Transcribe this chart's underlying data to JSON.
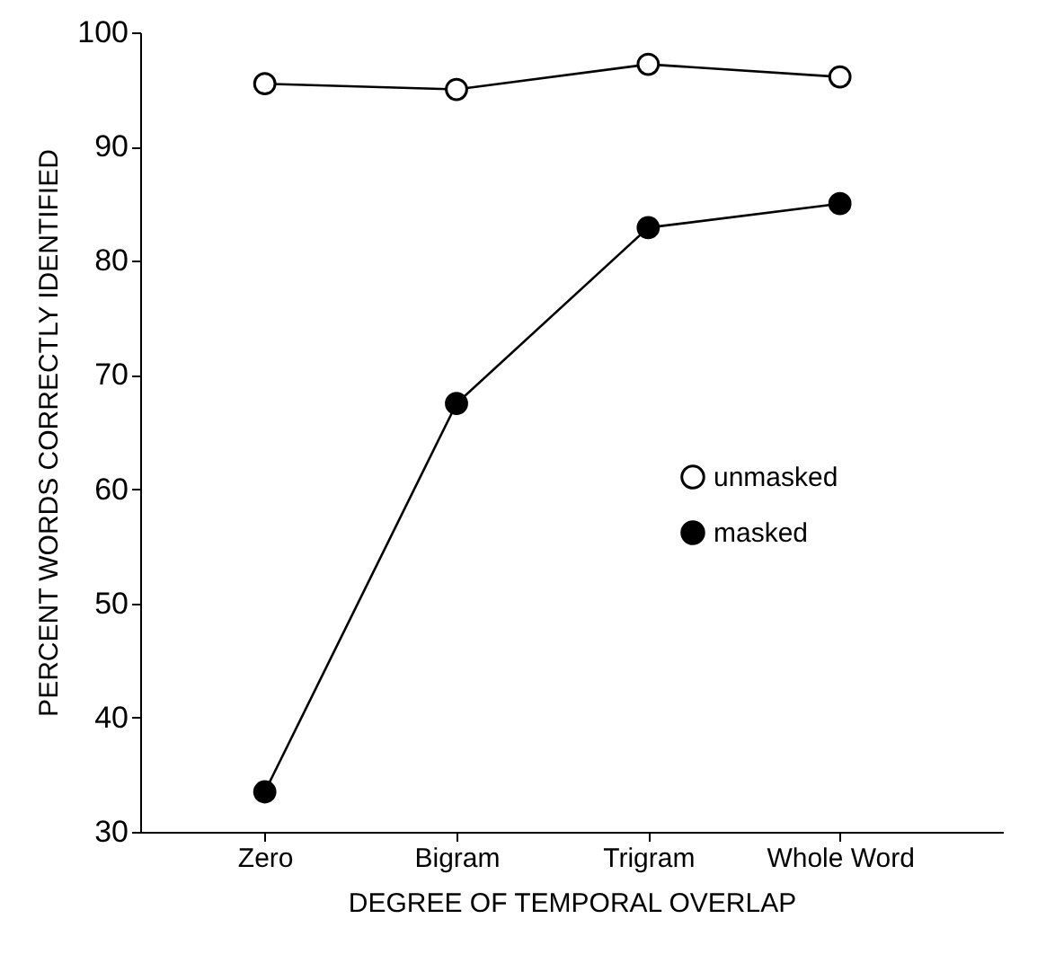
{
  "chart_data": {
    "type": "line",
    "xlabel": "DEGREE OF TEMPORAL OVERLAP",
    "ylabel": "PERCENT WORDS CORRECTLY IDENTIFIED",
    "categories": [
      "Zero",
      "Bigram",
      "Trigram",
      "Whole Word"
    ],
    "series": [
      {
        "name": "unmasked",
        "color": "#000000",
        "values": [
          95.5,
          95.0,
          97.2,
          96.1
        ]
      },
      {
        "name": "masked",
        "color": "#000000",
        "values": [
          33.5,
          67.5,
          82.9,
          85.0
        ]
      }
    ],
    "ylim": [
      30,
      100
    ],
    "yticks": [
      30,
      40,
      50,
      60,
      70,
      80,
      90,
      100
    ],
    "grid": false,
    "legend": "right",
    "marker": "circle",
    "line_style": "solid"
  }
}
